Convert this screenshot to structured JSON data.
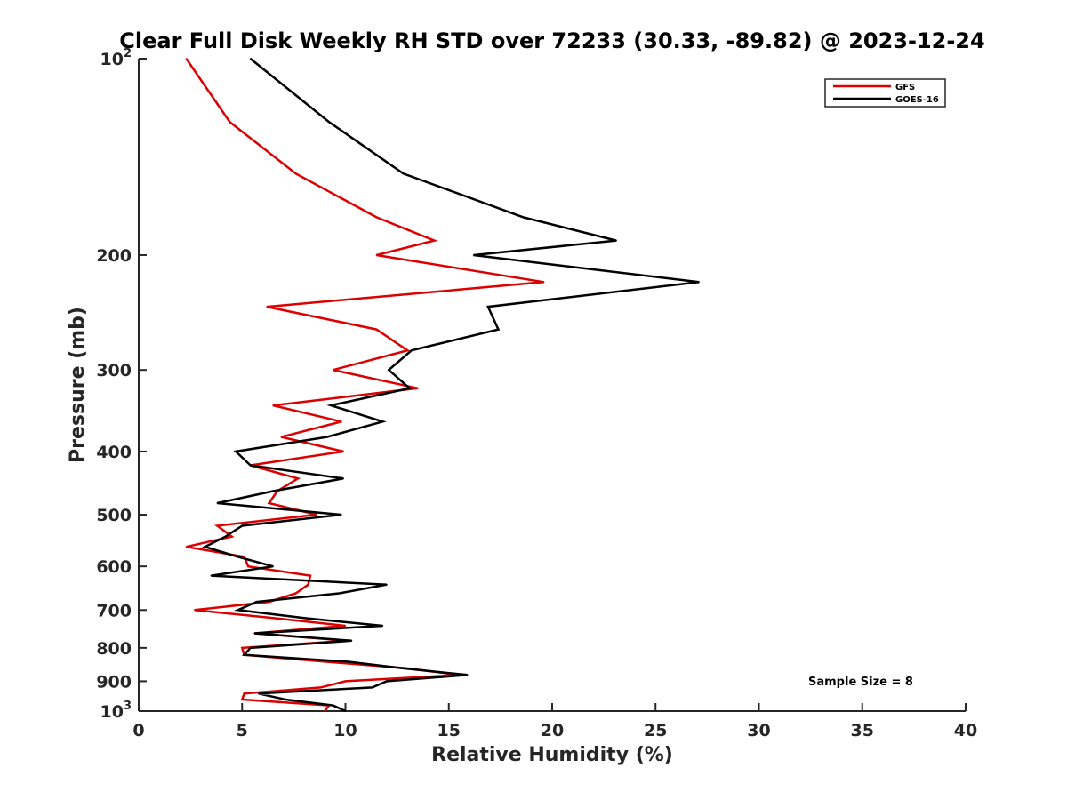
{
  "chart_data": {
    "type": "line",
    "title": "Clear Full Disk Weekly RH STD over 72233 (30.33, -89.82) @ 2023-12-24",
    "xlabel": "Relative Humidity (%)",
    "ylabel": "Pressure (mb)",
    "xlim": [
      0,
      40
    ],
    "ylim": [
      100,
      1000
    ],
    "y_scale": "log",
    "y_reversed": true,
    "x_ticks": [
      "0",
      "5",
      "10",
      "15",
      "20",
      "25",
      "30",
      "35",
      "40"
    ],
    "y_ticks": [
      {
        "value": 100,
        "label": "10",
        "sup": "2"
      },
      {
        "value": 200,
        "label": "200",
        "sup": ""
      },
      {
        "value": 300,
        "label": "300",
        "sup": ""
      },
      {
        "value": 400,
        "label": "400",
        "sup": ""
      },
      {
        "value": 500,
        "label": "500",
        "sup": ""
      },
      {
        "value": 600,
        "label": "600",
        "sup": ""
      },
      {
        "value": 700,
        "label": "700",
        "sup": ""
      },
      {
        "value": 800,
        "label": "800",
        "sup": ""
      },
      {
        "value": 900,
        "label": "900",
        "sup": ""
      },
      {
        "value": 1000,
        "label": "10",
        "sup": "3"
      }
    ],
    "legend_position": "top-right",
    "grid": false,
    "annotation": "Sample Size = 8",
    "series": [
      {
        "name": "GFS",
        "color": "#dd0000",
        "points": [
          [
            2.3,
            100
          ],
          [
            4.4,
            125
          ],
          [
            7.6,
            150
          ],
          [
            11.5,
            175
          ],
          [
            14.3,
            190
          ],
          [
            11.5,
            200
          ],
          [
            19.6,
            220
          ],
          [
            6.2,
            240
          ],
          [
            11.5,
            260
          ],
          [
            13.0,
            280
          ],
          [
            9.4,
            300
          ],
          [
            13.5,
            320
          ],
          [
            6.5,
            340
          ],
          [
            9.8,
            360
          ],
          [
            6.9,
            380
          ],
          [
            9.9,
            400
          ],
          [
            5.4,
            420
          ],
          [
            7.7,
            440
          ],
          [
            6.7,
            460
          ],
          [
            6.3,
            480
          ],
          [
            8.6,
            500
          ],
          [
            3.8,
            520
          ],
          [
            4.5,
            540
          ],
          [
            2.3,
            560
          ],
          [
            5.1,
            580
          ],
          [
            5.3,
            600
          ],
          [
            8.3,
            620
          ],
          [
            8.2,
            640
          ],
          [
            7.6,
            660
          ],
          [
            6.3,
            680
          ],
          [
            2.7,
            700
          ],
          [
            6.5,
            720
          ],
          [
            10.0,
            740
          ],
          [
            5.6,
            760
          ],
          [
            10.1,
            780
          ],
          [
            5.0,
            800
          ],
          [
            5.1,
            820
          ],
          [
            9.0,
            840
          ],
          [
            13.0,
            860
          ],
          [
            15.5,
            880
          ],
          [
            10.0,
            900
          ],
          [
            8.8,
            920
          ],
          [
            5.1,
            940
          ],
          [
            5.0,
            960
          ],
          [
            9.2,
            980
          ],
          [
            9.0,
            1000
          ]
        ]
      },
      {
        "name": "GOES-16",
        "color": "#000000",
        "points": [
          [
            5.4,
            100
          ],
          [
            9.2,
            125
          ],
          [
            12.8,
            150
          ],
          [
            18.6,
            175
          ],
          [
            23.1,
            190
          ],
          [
            16.2,
            200
          ],
          [
            27.1,
            220
          ],
          [
            16.9,
            240
          ],
          [
            17.4,
            260
          ],
          [
            13.2,
            280
          ],
          [
            12.1,
            300
          ],
          [
            13.1,
            320
          ],
          [
            9.3,
            340
          ],
          [
            11.8,
            360
          ],
          [
            9.1,
            380
          ],
          [
            4.7,
            400
          ],
          [
            5.4,
            420
          ],
          [
            9.9,
            440
          ],
          [
            6.5,
            460
          ],
          [
            3.8,
            480
          ],
          [
            9.8,
            500
          ],
          [
            5.0,
            520
          ],
          [
            4.2,
            540
          ],
          [
            3.2,
            560
          ],
          [
            4.8,
            580
          ],
          [
            6.5,
            600
          ],
          [
            3.5,
            620
          ],
          [
            12.0,
            640
          ],
          [
            9.7,
            660
          ],
          [
            5.7,
            680
          ],
          [
            4.8,
            700
          ],
          [
            8.0,
            720
          ],
          [
            11.8,
            740
          ],
          [
            5.6,
            760
          ],
          [
            10.3,
            780
          ],
          [
            5.4,
            800
          ],
          [
            5.1,
            820
          ],
          [
            10.1,
            840
          ],
          [
            12.8,
            860
          ],
          [
            15.9,
            880
          ],
          [
            12.0,
            900
          ],
          [
            11.3,
            920
          ],
          [
            5.8,
            940
          ],
          [
            7.1,
            960
          ],
          [
            9.4,
            980
          ],
          [
            10.0,
            1000
          ]
        ]
      }
    ]
  }
}
